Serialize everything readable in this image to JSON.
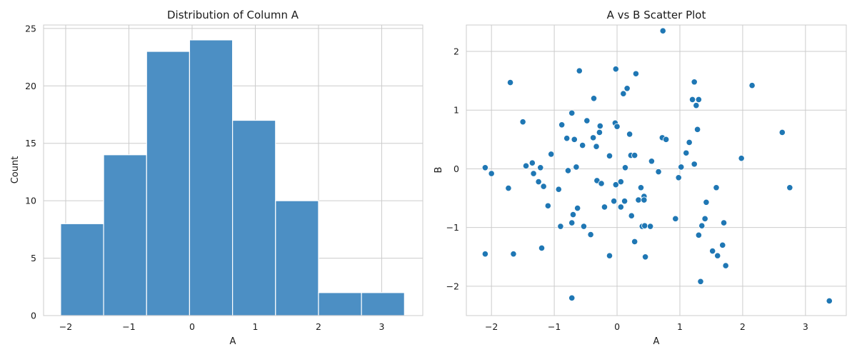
{
  "chart_data": [
    {
      "type": "histogram",
      "title": "Distribution of Column A",
      "xlabel": "A",
      "ylabel": "Count",
      "xlim": [
        -2.35,
        3.65
      ],
      "ylim": [
        0,
        25.3
      ],
      "xticks": [
        -2,
        -1,
        0,
        1,
        2,
        3
      ],
      "yticks": [
        0,
        5,
        10,
        15,
        20,
        25
      ],
      "grid": true,
      "bar_color": "#4c8fc4",
      "bins": [
        {
          "x0": -2.08,
          "x1": -1.4,
          "count": 8
        },
        {
          "x0": -1.4,
          "x1": -0.72,
          "count": 14
        },
        {
          "x0": -0.72,
          "x1": -0.04,
          "count": 23
        },
        {
          "x0": -0.04,
          "x1": 0.64,
          "count": 24
        },
        {
          "x0": 0.64,
          "x1": 1.32,
          "count": 17
        },
        {
          "x0": 1.32,
          "x1": 2.0,
          "count": 10
        },
        {
          "x0": 2.0,
          "x1": 2.68,
          "count": 2
        },
        {
          "x0": 2.68,
          "x1": 3.36,
          "count": 2
        }
      ]
    },
    {
      "type": "scatter",
      "title": "A vs B Scatter Plot",
      "xlabel": "A",
      "ylabel": "B",
      "xlim": [
        -2.4,
        3.65
      ],
      "ylim": [
        -2.5,
        2.45
      ],
      "xticks": [
        -2,
        -1,
        0,
        1,
        2,
        3
      ],
      "yticks": [
        -2,
        -1,
        0,
        1,
        2
      ],
      "grid": true,
      "point_color": "#1f77b4",
      "points": [
        [
          -2.1,
          0.02
        ],
        [
          -2.0,
          -0.08
        ],
        [
          -2.1,
          -1.45
        ],
        [
          -1.7,
          1.47
        ],
        [
          -1.73,
          -0.33
        ],
        [
          -1.65,
          -1.45
        ],
        [
          -1.5,
          0.8
        ],
        [
          -1.45,
          0.05
        ],
        [
          -1.35,
          0.1
        ],
        [
          -1.33,
          -0.08
        ],
        [
          -1.25,
          -0.22
        ],
        [
          -1.22,
          0.02
        ],
        [
          -1.2,
          -1.35
        ],
        [
          -1.17,
          -0.3
        ],
        [
          -1.1,
          -0.63
        ],
        [
          -1.05,
          0.25
        ],
        [
          -0.93,
          -0.35
        ],
        [
          -0.9,
          -0.98
        ],
        [
          -0.88,
          0.75
        ],
        [
          -0.8,
          0.52
        ],
        [
          -0.78,
          -0.03
        ],
        [
          -0.72,
          -0.92
        ],
        [
          -0.72,
          0.95
        ],
        [
          -0.7,
          -0.78
        ],
        [
          -0.68,
          0.5
        ],
        [
          -0.65,
          0.03
        ],
        [
          -0.63,
          -0.67
        ],
        [
          -0.6,
          1.67
        ],
        [
          -0.55,
          0.4
        ],
        [
          -0.53,
          -0.98
        ],
        [
          -0.48,
          0.82
        ],
        [
          -0.42,
          -1.12
        ],
        [
          -0.38,
          0.53
        ],
        [
          -0.37,
          1.2
        ],
        [
          -0.33,
          0.38
        ],
        [
          -0.32,
          -0.2
        ],
        [
          -0.28,
          0.62
        ],
        [
          -0.27,
          0.73
        ],
        [
          -0.25,
          -0.25
        ],
        [
          -0.2,
          -0.65
        ],
        [
          -0.12,
          -1.48
        ],
        [
          -0.12,
          0.22
        ],
        [
          -0.05,
          -0.55
        ],
        [
          -0.03,
          0.78
        ],
        [
          -0.02,
          1.7
        ],
        [
          -0.02,
          -0.27
        ],
        [
          0.0,
          0.72
        ],
        [
          0.06,
          -0.65
        ],
        [
          0.06,
          -0.22
        ],
        [
          0.1,
          1.28
        ],
        [
          0.12,
          -0.55
        ],
        [
          0.13,
          0.02
        ],
        [
          0.16,
          1.37
        ],
        [
          0.2,
          0.59
        ],
        [
          0.22,
          0.23
        ],
        [
          0.23,
          -0.8
        ],
        [
          0.28,
          -1.24
        ],
        [
          0.28,
          0.23
        ],
        [
          0.3,
          1.62
        ],
        [
          0.34,
          -0.53
        ],
        [
          0.38,
          -0.32
        ],
        [
          0.4,
          -0.98
        ],
        [
          0.43,
          -0.47
        ],
        [
          0.43,
          -0.53
        ],
        [
          0.44,
          -0.97
        ],
        [
          0.45,
          -1.5
        ],
        [
          0.53,
          -0.98
        ],
        [
          0.55,
          0.13
        ],
        [
          0.66,
          -0.05
        ],
        [
          0.72,
          0.53
        ],
        [
          0.73,
          2.35
        ],
        [
          0.78,
          0.5
        ],
        [
          0.93,
          -0.85
        ],
        [
          0.98,
          -0.15
        ],
        [
          1.02,
          0.03
        ],
        [
          1.1,
          0.27
        ],
        [
          1.15,
          0.45
        ],
        [
          1.2,
          1.18
        ],
        [
          1.23,
          1.48
        ],
        [
          1.23,
          0.08
        ],
        [
          1.26,
          1.08
        ],
        [
          1.28,
          0.67
        ],
        [
          1.3,
          1.18
        ],
        [
          1.3,
          -1.13
        ],
        [
          1.33,
          -1.92
        ],
        [
          1.35,
          -0.97
        ],
        [
          1.4,
          -0.85
        ],
        [
          1.42,
          -0.57
        ],
        [
          1.52,
          -1.4
        ],
        [
          1.58,
          -0.32
        ],
        [
          1.6,
          -1.48
        ],
        [
          1.68,
          -1.3
        ],
        [
          1.7,
          -0.92
        ],
        [
          1.73,
          -1.65
        ],
        [
          1.98,
          0.18
        ],
        [
          2.15,
          1.42
        ],
        [
          2.63,
          0.62
        ],
        [
          2.75,
          -0.32
        ],
        [
          3.38,
          -2.25
        ],
        [
          -0.72,
          -2.2
        ]
      ]
    }
  ]
}
